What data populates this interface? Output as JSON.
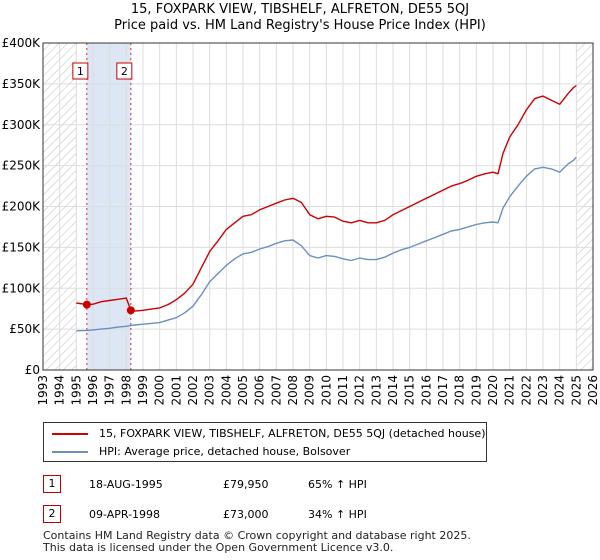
{
  "title_line1": "15, FOXPARK VIEW, TIBSHELF, ALFRETON, DE55 5QJ",
  "title_line2": "Price paid vs. HM Land Registry's House Price Index (HPI)",
  "legend": {
    "series1": "15, FOXPARK VIEW, TIBSHELF, ALFRETON, DE55 5QJ (detached house)",
    "series2": "HPI: Average price, detached house, Bolsover"
  },
  "transactions": [
    {
      "num": "1",
      "date": "18-AUG-1995",
      "price": "£79,950",
      "hpi": "65% ↑ HPI"
    },
    {
      "num": "2",
      "date": "09-APR-1998",
      "price": "£73,000",
      "hpi": "34% ↑ HPI"
    }
  ],
  "footer": {
    "line1": "Contains HM Land Registry data © Crown copyright and database right 2025.",
    "line2": "This data is licensed under the Open Government Licence v3.0."
  },
  "colors": {
    "price_line": "#cc0000",
    "hpi_line": "#6b8fc0",
    "sale_band": "#dde6f4",
    "hatch": "#c8c8c8",
    "grid": "#dddddd",
    "marker_border": "#cc0000"
  },
  "chart_data": {
    "type": "line",
    "title": "15, FOXPARK VIEW, TIBSHELF, ALFRETON, DE55 5QJ",
    "subtitle": "Price paid vs. HM Land Registry's House Price Index (HPI)",
    "xlabel": "",
    "ylabel": "",
    "xlim": [
      1993,
      2026
    ],
    "ylim": [
      0,
      400000
    ],
    "grid": true,
    "legend_position": "bottom",
    "x_ticks": [
      1993,
      1994,
      1995,
      1996,
      1997,
      1998,
      1999,
      2000,
      2001,
      2002,
      2003,
      2004,
      2005,
      2006,
      2007,
      2008,
      2009,
      2010,
      2011,
      2012,
      2013,
      2014,
      2015,
      2016,
      2017,
      2018,
      2019,
      2020,
      2021,
      2022,
      2023,
      2024,
      2025,
      2026
    ],
    "y_ticks": [
      {
        "value": 0,
        "label": "£0"
      },
      {
        "value": 50000,
        "label": "£50K"
      },
      {
        "value": 100000,
        "label": "£100K"
      },
      {
        "value": 150000,
        "label": "£150K"
      },
      {
        "value": 200000,
        "label": "£200K"
      },
      {
        "value": 250000,
        "label": "£250K"
      },
      {
        "value": 300000,
        "label": "£300K"
      },
      {
        "value": 350000,
        "label": "£350K"
      },
      {
        "value": 400000,
        "label": "£400K"
      }
    ],
    "hatched_before": 1995.0,
    "hatched_after": 2025.0,
    "sale_band": [
      1995.63,
      1998.27
    ],
    "markers": [
      {
        "label": "1",
        "x": 1995.63,
        "y": 79950
      },
      {
        "label": "2",
        "x": 1998.27,
        "y": 73000
      }
    ],
    "series": [
      {
        "name": "15, FOXPARK VIEW, TIBSHELF, ALFRETON, DE55 5QJ (detached house)",
        "x": [
          1995.0,
          1995.63,
          1996.0,
          1996.5,
          1997.0,
          1997.5,
          1998.0,
          1998.27,
          1998.5,
          1999.0,
          1999.5,
          2000.0,
          2000.5,
          2001.0,
          2001.5,
          2002.0,
          2002.5,
          2003.0,
          2003.5,
          2004.0,
          2004.5,
          2005.0,
          2005.5,
          2006.0,
          2006.5,
          2007.0,
          2007.5,
          2008.0,
          2008.5,
          2009.0,
          2009.5,
          2010.0,
          2010.5,
          2011.0,
          2011.5,
          2012.0,
          2012.5,
          2013.0,
          2013.5,
          2014.0,
          2014.5,
          2015.0,
          2015.5,
          2016.0,
          2016.5,
          2017.0,
          2017.5,
          2018.0,
          2018.5,
          2019.0,
          2019.5,
          2020.0,
          2020.3,
          2020.6,
          2021.0,
          2021.5,
          2022.0,
          2022.5,
          2023.0,
          2023.5,
          2024.0,
          2024.5,
          2024.8,
          2025.0
        ],
        "values": [
          82000,
          79950,
          80500,
          83500,
          85000,
          86500,
          88000,
          73000,
          72000,
          73000,
          74500,
          76000,
          80000,
          86000,
          94000,
          105000,
          125000,
          145000,
          158000,
          172000,
          180000,
          188000,
          190000,
          196000,
          200000,
          204000,
          208000,
          210000,
          205000,
          190000,
          185000,
          188000,
          187000,
          182000,
          180000,
          183000,
          180000,
          180000,
          183000,
          190000,
          195000,
          200000,
          205000,
          210000,
          215000,
          220000,
          225000,
          228000,
          232000,
          237000,
          240000,
          242000,
          240000,
          265000,
          285000,
          300000,
          318000,
          332000,
          335000,
          330000,
          325000,
          338000,
          345000,
          348000
        ]
      },
      {
        "name": "HPI: Average price, detached house, Bolsover",
        "x": [
          1995.0,
          1995.63,
          1996.0,
          1996.5,
          1997.0,
          1997.5,
          1998.0,
          1998.27,
          1998.5,
          1999.0,
          1999.5,
          2000.0,
          2000.5,
          2001.0,
          2001.5,
          2002.0,
          2002.5,
          2003.0,
          2003.5,
          2004.0,
          2004.5,
          2005.0,
          2005.5,
          2006.0,
          2006.5,
          2007.0,
          2007.5,
          2008.0,
          2008.5,
          2009.0,
          2009.5,
          2010.0,
          2010.5,
          2011.0,
          2011.5,
          2012.0,
          2012.5,
          2013.0,
          2013.5,
          2014.0,
          2014.5,
          2015.0,
          2015.5,
          2016.0,
          2016.5,
          2017.0,
          2017.5,
          2018.0,
          2018.5,
          2019.0,
          2019.5,
          2020.0,
          2020.3,
          2020.6,
          2021.0,
          2021.5,
          2022.0,
          2022.5,
          2023.0,
          2023.5,
          2024.0,
          2024.5,
          2024.8,
          2025.0
        ],
        "values": [
          48000,
          48500,
          49000,
          50000,
          51000,
          52500,
          53500,
          54500,
          55000,
          56000,
          57000,
          58000,
          61000,
          64000,
          70000,
          78000,
          92000,
          108000,
          118000,
          128000,
          136000,
          142000,
          144000,
          148000,
          151000,
          155000,
          158000,
          159000,
          152000,
          140000,
          137000,
          140000,
          139000,
          136000,
          134000,
          137000,
          135000,
          135000,
          138000,
          143000,
          147000,
          150000,
          154000,
          158000,
          162000,
          166000,
          170000,
          172000,
          175000,
          178000,
          180000,
          181000,
          180000,
          198000,
          212000,
          225000,
          237000,
          246000,
          248000,
          246000,
          242000,
          252000,
          256000,
          260000
        ]
      }
    ]
  }
}
